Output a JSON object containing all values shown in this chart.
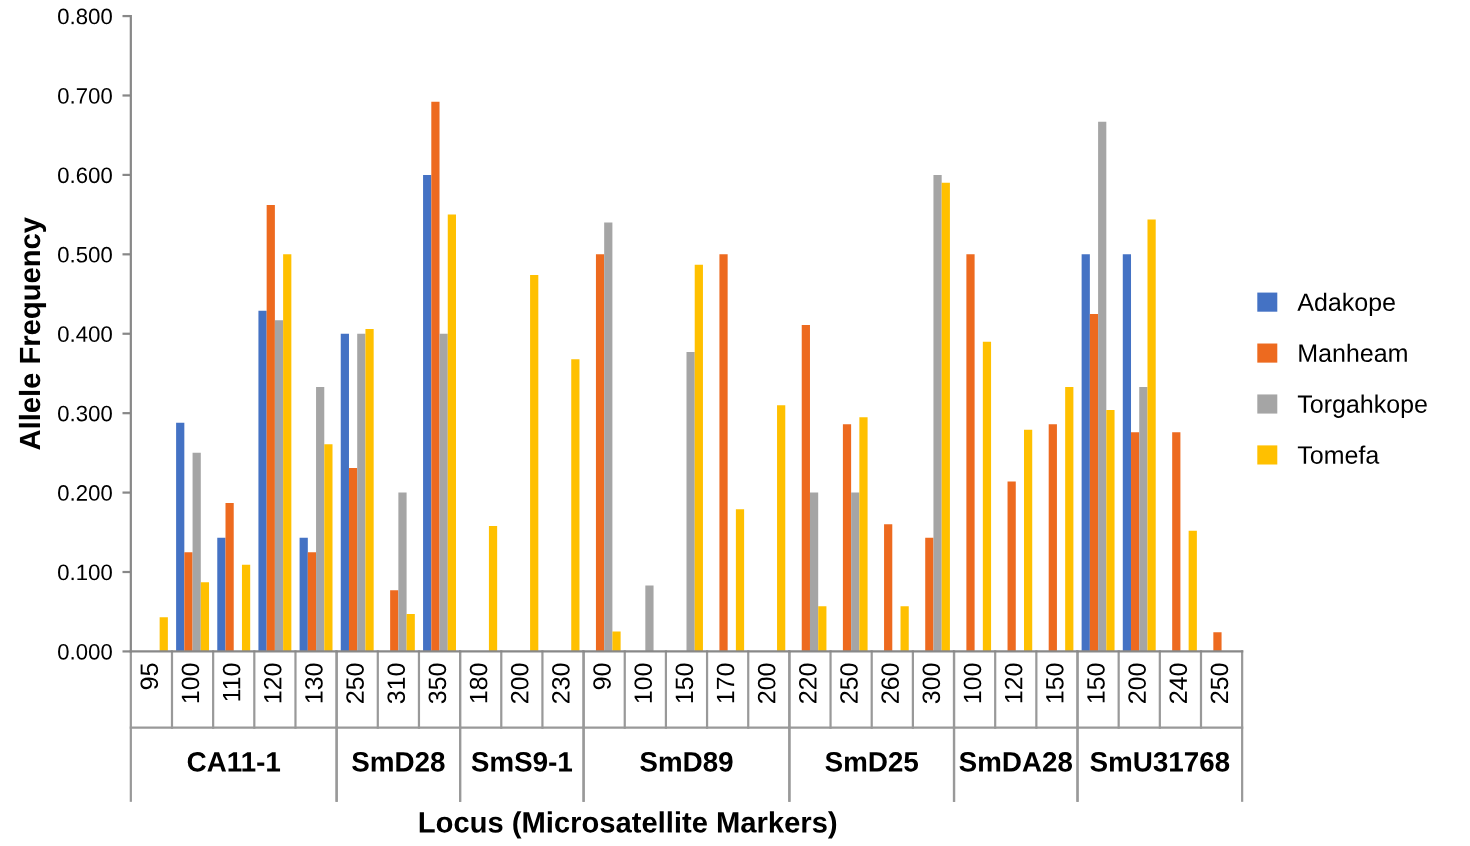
{
  "chart_data": [
    {
      "type": "bar",
      "xlabel": "CA11-1",
      "ylabel": "Allele Frequency",
      "categories": [
        "95",
        "100",
        "110",
        "120",
        "130"
      ],
      "series": [
        {
          "color": "#4472c4",
          "values": [
            0,
            0.288,
            0.143,
            0.429,
            0.143
          ]
        },
        {
          "color": "#ed6a1f",
          "values": [
            0,
            0.125,
            0.187,
            0.562,
            0.125
          ]
        },
        {
          "color": "#a5a5a5",
          "values": [
            0,
            0.25,
            0,
            0.417,
            0.333
          ]
        },
        {
          "color": "#ffc000",
          "values": [
            0.043,
            0.087,
            0.109,
            0.5,
            0.261
          ]
        }
      ],
      "ylim": [
        0,
        0.8
      ],
      "yticks": [
        {
          "value": 0,
          "label": "0.000"
        },
        {
          "value": 0.1,
          "label": "0.100"
        },
        {
          "value": 0.2,
          "label": "0.200"
        },
        {
          "value": 0.3,
          "label": "0.300"
        },
        {
          "value": 0.4,
          "label": "0.400"
        },
        {
          "value": 0.5,
          "label": "0.500"
        },
        {
          "value": 0.6,
          "label": "0.600"
        },
        {
          "value": 0.7,
          "label": "0.700"
        },
        {
          "value": 0.8,
          "label": "0.800"
        }
      ]
    },
    {
      "type": "bar",
      "xlabel": "SmD28",
      "categories": [
        "250",
        "310",
        "350"
      ],
      "series": [
        {
          "color": "#4472c4",
          "values": [
            0.4,
            0,
            0.6
          ]
        },
        {
          "color": "#ed6a1f",
          "values": [
            0.231,
            0.077,
            0.692
          ]
        },
        {
          "color": "#a5a5a5",
          "values": [
            0.4,
            0.2,
            0.4
          ]
        },
        {
          "color": "#ffc000",
          "values": [
            0.406,
            0.047,
            0.55
          ]
        }
      ],
      "ylim": [
        0,
        0.8
      ],
      "tick_labels": "x"
    },
    {
      "type": "bar",
      "xlabel": "SmS9-1",
      "categories": [
        "180",
        "200",
        "230"
      ],
      "series": [
        {
          "color": "#4472c4",
          "values": [
            0,
            0,
            0
          ]
        },
        {
          "color": "#ed6a1f",
          "values": [
            0,
            0,
            0
          ]
        },
        {
          "color": "#a5a5a5",
          "values": [
            0,
            0,
            0
          ]
        },
        {
          "color": "#ffc000",
          "values": [
            0.158,
            0.474,
            0.368
          ]
        }
      ],
      "ylim": [
        0,
        0.8
      ],
      "tick_labels": "x"
    },
    {
      "type": "bar",
      "xlabel": "SmD89",
      "categories": [
        "90",
        "100",
        "150",
        "170",
        "200"
      ],
      "series": [
        {
          "color": "#4472c4",
          "values": [
            0,
            0,
            0,
            0,
            0
          ]
        },
        {
          "color": "#ed6a1f",
          "values": [
            0.5,
            0,
            0,
            0.5,
            0
          ]
        },
        {
          "color": "#a5a5a5",
          "values": [
            0.54,
            0.083,
            0.377,
            0,
            0
          ]
        },
        {
          "color": "#ffc000",
          "values": [
            0.025,
            0,
            0.487,
            0.179,
            0.31
          ]
        }
      ],
      "ylim": [
        0,
        0.8
      ],
      "tick_labels": "x"
    },
    {
      "type": "bar",
      "xlabel": "SmD25",
      "categories": [
        "220",
        "250",
        "260",
        "300"
      ],
      "series": [
        {
          "color": "#4472c4",
          "values": [
            0,
            0,
            0,
            0
          ]
        },
        {
          "color": "#ed6a1f",
          "values": [
            0.411,
            0.286,
            0.16,
            0.143
          ]
        },
        {
          "color": "#a5a5a5",
          "values": [
            0.2,
            0.2,
            0,
            0.6
          ]
        },
        {
          "color": "#ffc000",
          "values": [
            0.057,
            0.295,
            0.057,
            0.59
          ]
        }
      ],
      "ylim": [
        0,
        0.8
      ],
      "tick_labels": "x",
      "annotations": [
        "Locus (Microsatellite Markers)"
      ]
    },
    {
      "type": "bar",
      "xlabel": "SmDA28",
      "categories": [
        "100",
        "120",
        "150"
      ],
      "series": [
        {
          "color": "#4472c4",
          "values": [
            0,
            0,
            0
          ]
        },
        {
          "color": "#ed6a1f",
          "values": [
            0.5,
            0.214,
            0.286
          ]
        },
        {
          "color": "#a5a5a5",
          "values": [
            0,
            0,
            0
          ]
        },
        {
          "color": "#ffc000",
          "values": [
            0.39,
            0.279,
            0.333
          ]
        }
      ],
      "ylim": [
        0,
        0.8
      ],
      "tick_labels": "x"
    },
    {
      "type": "bar",
      "xlabel": "SmU31768",
      "categories": [
        "150",
        "200",
        "240",
        "250"
      ],
      "series": [
        {
          "name": "Adakope",
          "color": "#4472c4",
          "values": [
            0.5,
            0.5,
            0,
            0
          ]
        },
        {
          "name": "Manheam",
          "color": "#ed6a1f",
          "values": [
            0.425,
            0.276,
            0.276,
            0.024
          ]
        },
        {
          "name": "Torgahkope",
          "color": "#a5a5a5",
          "values": [
            0.667,
            0.333,
            0,
            0
          ]
        },
        {
          "name": "Tomefa",
          "color": "#ffc000",
          "values": [
            0.304,
            0.544,
            0.152,
            0
          ]
        }
      ],
      "ylim": [
        0,
        0.8
      ],
      "tick_labels": "x",
      "legend": "right"
    }
  ]
}
